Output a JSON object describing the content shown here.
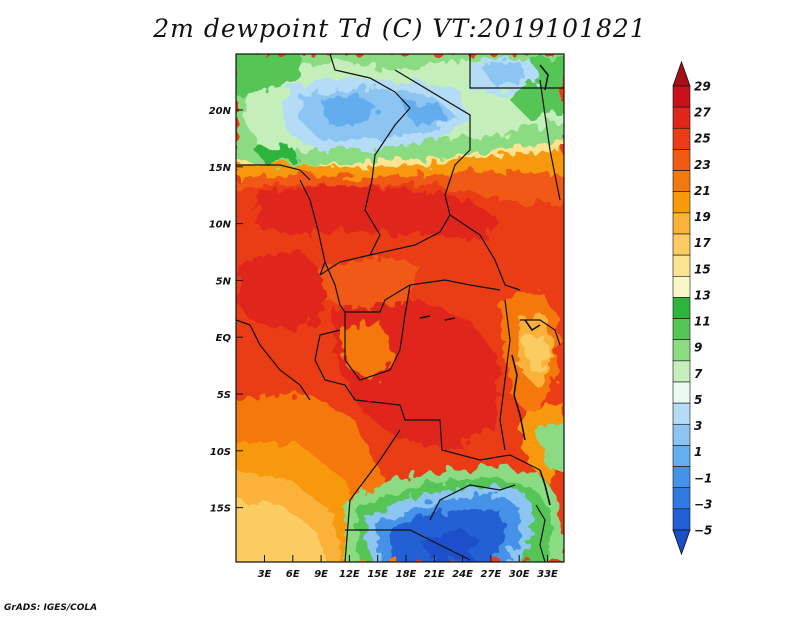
{
  "title": "2m dewpoint Td (C) VT:2019101821",
  "credit": "GrADS: IGES/COLA",
  "map": {
    "lat_labels": [
      "20N",
      "15N",
      "10N",
      "5N",
      "EQ",
      "5S",
      "10S",
      "15S"
    ],
    "lon_labels": [
      "3E",
      "6E",
      "9E",
      "12E",
      "15E",
      "18E",
      "21E",
      "24E",
      "27E",
      "30E",
      "33E"
    ]
  },
  "colorbar": {
    "labels": [
      "29",
      "27",
      "25",
      "23",
      "21",
      "19",
      "17",
      "15",
      "13",
      "11",
      "9",
      "7",
      "5",
      "3",
      "1",
      "−1",
      "−3",
      "−5"
    ],
    "colors": [
      "#a50f15",
      "#c8101a",
      "#e0251a",
      "#ea3c15",
      "#f05a12",
      "#f5780e",
      "#f8990c",
      "#fab23a",
      "#fbcc62",
      "#fde493",
      "#f9f7c6",
      "#2eb33c",
      "#55c655",
      "#8bdb83",
      "#c4efba",
      "#eafaf3",
      "#b4dcf6",
      "#8cc5f2",
      "#64adee",
      "#4592e8",
      "#2f79e0",
      "#2160d4",
      "#1a4fc9"
    ]
  }
}
